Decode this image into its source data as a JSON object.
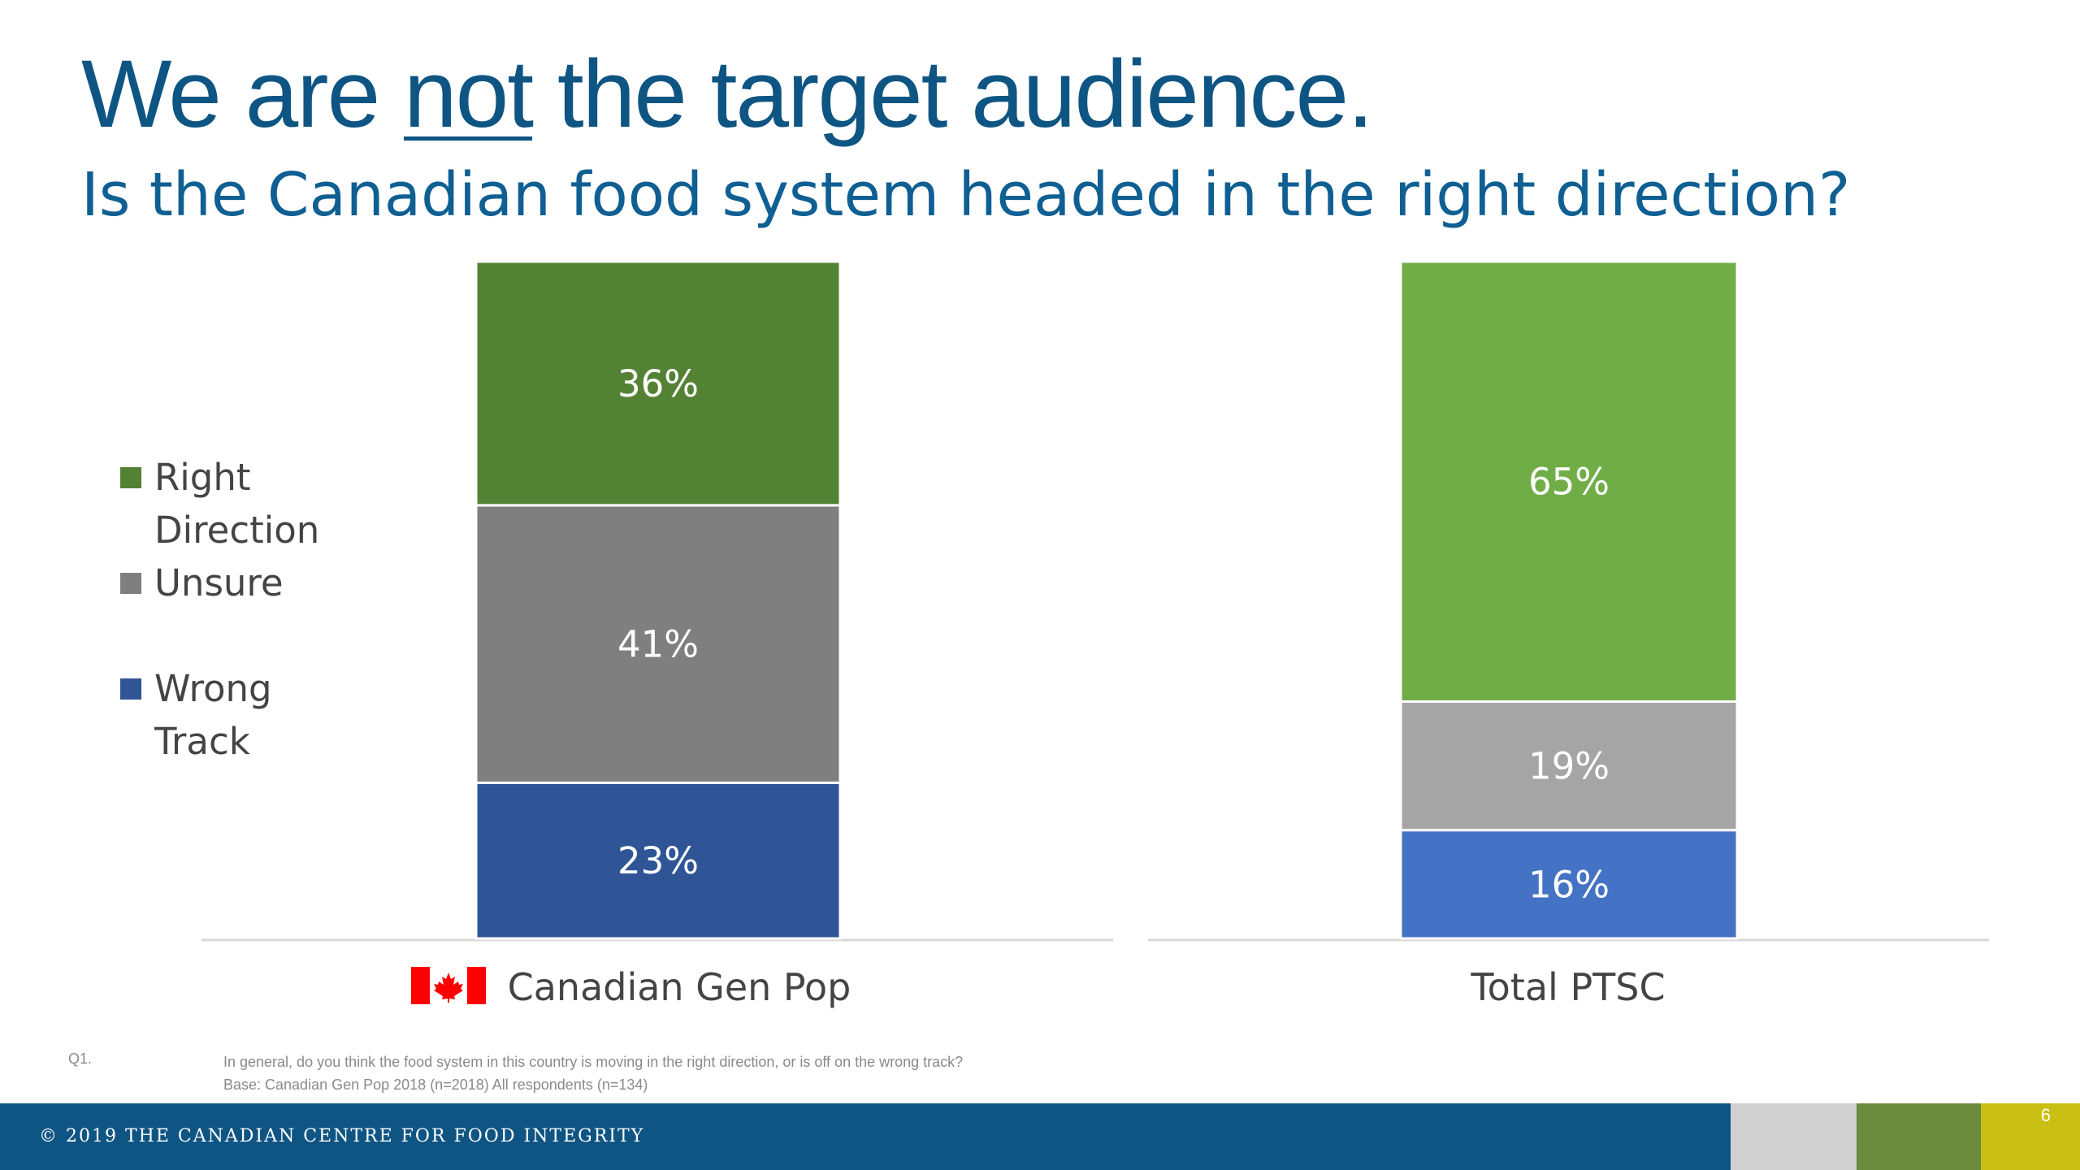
{
  "slide": {
    "title_pre": "We are ",
    "title_emph": "not",
    "title_post": " the target audience.",
    "subtitle": "Is the Canadian food system headed in the right direction?"
  },
  "chart_data": {
    "type": "bar",
    "stacked": true,
    "orientation": "vertical",
    "categories": [
      "Canadian Gen Pop",
      "Total PTSC"
    ],
    "series": [
      {
        "name": "Wrong Track",
        "values": [
          23,
          16
        ],
        "colors": [
          "#2f5597",
          "#4472c4"
        ]
      },
      {
        "name": "Unsure",
        "values": [
          41,
          19
        ],
        "colors": [
          "#7f7f7f",
          "#a5a5a5"
        ]
      },
      {
        "name": "Right Direction",
        "values": [
          36,
          65
        ],
        "colors": [
          "#548235",
          "#70ad47"
        ]
      }
    ],
    "unit": "%",
    "ylim": [
      0,
      100
    ],
    "legend_position": "left",
    "grid": false,
    "xlabel": "",
    "ylabel": ""
  },
  "legend": [
    {
      "label": "Right Direction",
      "color": "#548235"
    },
    {
      "label": "Unsure",
      "color": "#7f7f7f"
    },
    {
      "label": "Wrong Track",
      "color": "#2f5597"
    }
  ],
  "footnote": {
    "question_id": "Q1.",
    "question": "In general, do you think the food system in this country is moving in the right direction, or is off on the wrong track?",
    "base": "Base: Canadian Gen Pop 2018 (n=2018) All respondents (n=134)"
  },
  "footer": {
    "copyright": "© 2019 THE CANADIAN CENTRE FOR FOOD INTEGRITY",
    "page_number": "6",
    "colors": {
      "main": "#0f5583",
      "band1": "#d0d0d0",
      "band2": "#6a8a3c",
      "band3": "#c8bf12"
    }
  },
  "icons": {
    "category_flag": "canada-flag-icon"
  }
}
